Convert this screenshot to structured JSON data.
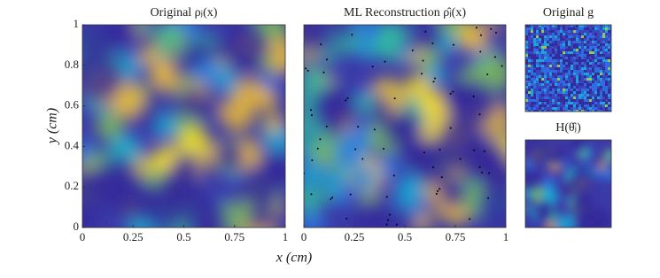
{
  "chart_data": [
    {
      "type": "heatmap",
      "title": "Original ρⱼ(x)",
      "xlabel": "x (cm)",
      "ylabel": "y (cm)",
      "xlim": [
        0,
        1
      ],
      "ylim": [
        0,
        1
      ],
      "xticks": [
        0,
        0.25,
        0.5,
        0.75,
        1
      ],
      "yticks": [
        0,
        0.2,
        0.4,
        0.6,
        0.8,
        1
      ]
    },
    {
      "type": "heatmap",
      "title": "ML Reconstruction ρ̂ⱼ(x)",
      "xlim": [
        0,
        1
      ],
      "ylim": [
        0,
        1
      ],
      "xticks": [
        0,
        0.25,
        0.5,
        0.75,
        1
      ]
    },
    {
      "type": "noise",
      "title": "Original g"
    },
    {
      "type": "heatmap-small",
      "title": "H(θ̂ⱼ)"
    }
  ]
}
